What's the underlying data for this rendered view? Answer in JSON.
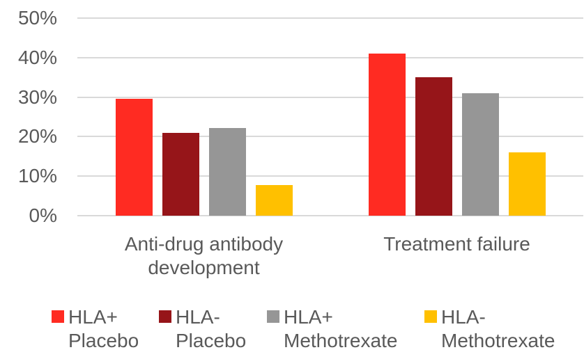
{
  "chart_data": {
    "type": "bar",
    "title": "",
    "xlabel": "",
    "ylabel": "",
    "categories": [
      "Anti-drug antibody development",
      "Treatment failure"
    ],
    "category_lines": [
      [
        "Anti-drug antibody",
        "development"
      ],
      [
        "Treatment failure"
      ]
    ],
    "series": [
      {
        "name": "HLA+ Placebo",
        "color": "#ff2b22",
        "values": [
          29.5,
          41
        ]
      },
      {
        "name": "HLA- Placebo",
        "color": "#961519",
        "values": [
          21,
          35
        ]
      },
      {
        "name": "HLA+ Methotrexate",
        "color": "#969696",
        "values": [
          22.2,
          31
        ]
      },
      {
        "name": "HLA- Methotrexate",
        "color": "#ffc000",
        "values": [
          7.7,
          16
        ]
      }
    ],
    "ylim": [
      0,
      50
    ],
    "yticks": [
      {
        "value": 0,
        "label": "0%"
      },
      {
        "value": 10,
        "label": "10%"
      },
      {
        "value": 20,
        "label": "20%"
      },
      {
        "value": 30,
        "label": "30%"
      },
      {
        "value": 40,
        "label": "40%"
      },
      {
        "value": 50,
        "label": "50%"
      }
    ],
    "grid": true,
    "legend_position": "bottom"
  },
  "colors": {
    "gridline": "#d9d9d9",
    "axis_text": "#595959",
    "background": "#ffffff"
  },
  "legend": {
    "items": [
      {
        "line1": "HLA+",
        "line2": "Placebo"
      },
      {
        "line1": "HLA-",
        "line2": "Placebo"
      },
      {
        "line1": "HLA+",
        "line2": "Methotrexate"
      },
      {
        "line1": "HLA-",
        "line2": "Methotrexate"
      }
    ]
  }
}
